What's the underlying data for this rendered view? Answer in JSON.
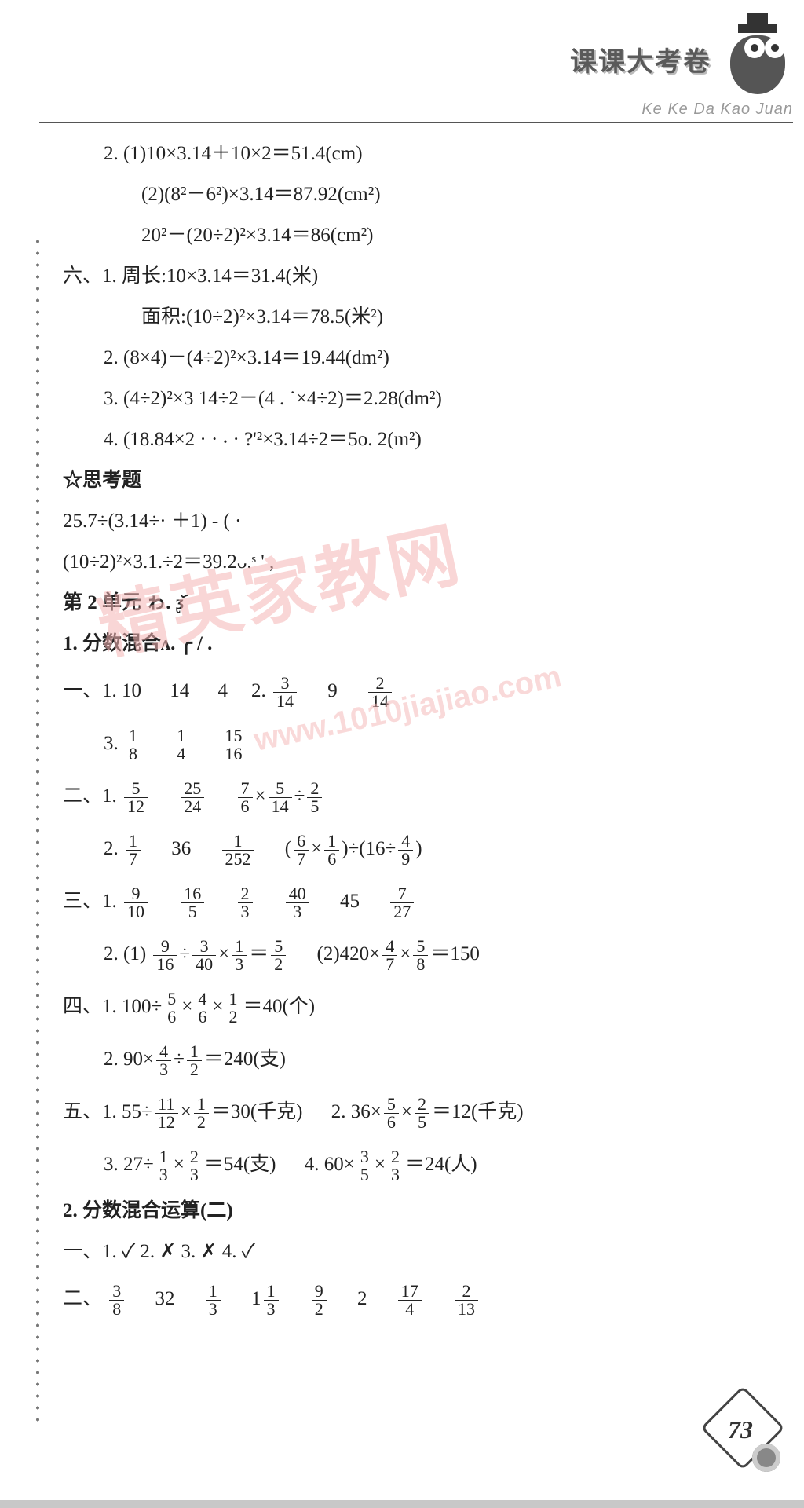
{
  "header": {
    "banner_title": "课课大考卷",
    "pinyin": "Ke Ke Da Kao Juan"
  },
  "watermark": {
    "main_text": "精英家教网",
    "url_text": "www.1010jiajiao.com"
  },
  "page_number": "73",
  "lines": {
    "l01": "2. (1)10×3.14＋10×2＝51.4(cm)",
    "l02": "(2)(8²－6²)×3.14＝87.92(cm²)",
    "l03": "20²－(20÷2)²×3.14＝86(cm²)",
    "l04_pre": "六、1. 周长:10×3.14＝31.4(米)",
    "l05": "面积:(10÷2)²×3.14＝78.5(米²)",
    "l06": "2. (8×4)－(4÷2)²×3.14＝19.44(dm²)",
    "l07": "3. (4÷2)²×3 14÷2－(4 . ˙×4÷2)＝2.28(dm²)",
    "l08": "4. (18.84×2 · · ⸳ · ?'²×3.14÷2＝5o. 2(m²)",
    "l09": "☆思考题",
    "l10": "25.7÷(3.14÷· ＋1) - ( ·",
    "l11": "(10÷2)²×3.1.÷2＝39.2ᴗ.ˢ ' ,",
    "l12": "第 2 单元    ゎ.     ᶚ᷃",
    "l13": "1. 分数混合ᴧ. ╭    / .",
    "l14_a": "一、1. 10",
    "l14_b": "14",
    "l14_c": "4",
    "l14_d": "9",
    "l15_a": "3.",
    "l16_a": "二、1.",
    "l17_a": "2.",
    "l17_b": "36",
    "l18_a": "三、1.",
    "l18_b": "45",
    "l19_a": "2. (1)",
    "l19_b": "(2)420×",
    "l19_c": "＝150",
    "l20_a": "四、1. 100÷",
    "l20_b": "＝40(个)",
    "l21_a": "2. 90×",
    "l21_b": "＝240(支)",
    "l22_a": "五、1. 55÷",
    "l22_b": "＝30(千克)",
    "l22_c": "2. 36×",
    "l22_d": "＝12(千克)",
    "l23_a": "3. 27÷",
    "l23_b": "＝54(支)",
    "l23_c": "4. 60×",
    "l23_d": "＝24(人)",
    "l24": "2. 分数混合运算(二)",
    "l25": "一、1. ✓    2. ✗    3. ✗    4. ✓",
    "l26_a": "二、",
    "l26_b": "32",
    "l26_c": "1",
    "l26_d": "2"
  },
  "fractions": {
    "f14_1": {
      "n": "3",
      "d": "14"
    },
    "f14_2": {
      "n": "2",
      "d": "14"
    },
    "f15_1": {
      "n": "1",
      "d": "8"
    },
    "f15_2": {
      "n": "1",
      "d": "4"
    },
    "f15_3": {
      "n": "15",
      "d": "16"
    },
    "f16_1": {
      "n": "5",
      "d": "12"
    },
    "f16_2": {
      "n": "25",
      "d": "24"
    },
    "f16_3": {
      "n": "7",
      "d": "6"
    },
    "f16_4": {
      "n": "5",
      "d": "14"
    },
    "f16_5": {
      "n": "2",
      "d": "5"
    },
    "f17_1": {
      "n": "1",
      "d": "7"
    },
    "f17_2": {
      "n": "1",
      "d": "252"
    },
    "f17_3": {
      "n": "6",
      "d": "7"
    },
    "f17_4": {
      "n": "1",
      "d": "6"
    },
    "f17_5": {
      "n": "4",
      "d": "9"
    },
    "f18_1": {
      "n": "9",
      "d": "10"
    },
    "f18_2": {
      "n": "16",
      "d": "5"
    },
    "f18_3": {
      "n": "2",
      "d": "3"
    },
    "f18_4": {
      "n": "40",
      "d": "3"
    },
    "f18_5": {
      "n": "7",
      "d": "27"
    },
    "f19_1": {
      "n": "9",
      "d": "16"
    },
    "f19_2": {
      "n": "3",
      "d": "40"
    },
    "f19_3": {
      "n": "1",
      "d": "3"
    },
    "f19_4": {
      "n": "5",
      "d": "2"
    },
    "f19_5": {
      "n": "4",
      "d": "7"
    },
    "f19_6": {
      "n": "5",
      "d": "8"
    },
    "f20_1": {
      "n": "5",
      "d": "6"
    },
    "f20_2": {
      "n": "4",
      "d": "6"
    },
    "f20_3": {
      "n": "1",
      "d": "2"
    },
    "f21_1": {
      "n": "4",
      "d": "3"
    },
    "f21_2": {
      "n": "1",
      "d": "2"
    },
    "f22_1": {
      "n": "11",
      "d": "12"
    },
    "f22_2": {
      "n": "1",
      "d": "2"
    },
    "f22_3": {
      "n": "5",
      "d": "6"
    },
    "f22_4": {
      "n": "2",
      "d": "5"
    },
    "f23_1": {
      "n": "1",
      "d": "3"
    },
    "f23_2": {
      "n": "2",
      "d": "3"
    },
    "f23_3": {
      "n": "3",
      "d": "5"
    },
    "f23_4": {
      "n": "2",
      "d": "3"
    },
    "f26_1": {
      "n": "3",
      "d": "8"
    },
    "f26_2": {
      "n": "1",
      "d": "3"
    },
    "f26_3": {
      "n": "1",
      "d": "3"
    },
    "f26_4": {
      "n": "9",
      "d": "2"
    },
    "f26_5": {
      "n": "17",
      "d": "4"
    },
    "f26_6": {
      "n": "2",
      "d": "13"
    }
  },
  "colors": {
    "page_bg": "#ffffff",
    "body_bg": "#c8c8c8",
    "text": "#222222",
    "watermark": "#f5b5b5"
  }
}
